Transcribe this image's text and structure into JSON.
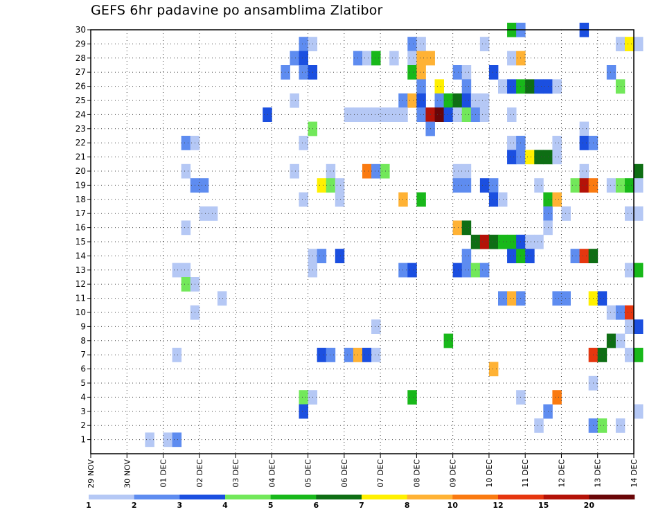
{
  "title": "GEFS 6hr padavine po ansamblima Zlatibor",
  "chart_data": {
    "type": "heatmap",
    "title": "GEFS 6hr padavine po ansamblima Zlatibor",
    "x_ticks": [
      "29 NOV",
      "30 NOV",
      "01 DEC",
      "02 DEC",
      "03 DEC",
      "04 DEC",
      "05 DEC",
      "06 DEC",
      "07 DEC",
      "08 DEC",
      "09 DEC",
      "10 DEC",
      "11 DEC",
      "12 DEC",
      "13 DEC",
      "14 DEC"
    ],
    "y_ticks": [
      1,
      2,
      3,
      4,
      5,
      6,
      7,
      8,
      9,
      10,
      11,
      12,
      13,
      14,
      15,
      16,
      17,
      18,
      19,
      20,
      21,
      22,
      23,
      24,
      25,
      26,
      27,
      28,
      29,
      30
    ],
    "ylim": [
      0,
      30
    ],
    "steps_per_day": 4,
    "grid": true,
    "colorbar": {
      "boundaries": [
        1,
        2,
        3,
        4,
        5,
        6,
        7,
        8,
        10,
        12,
        15,
        20
      ],
      "labels": [
        "1",
        "2",
        "3",
        "4",
        "5",
        "6",
        "7",
        "8",
        "10",
        "12",
        "15",
        "20"
      ],
      "colors": [
        "#b5c8f5",
        "#5e8cf0",
        "#1b4fe0",
        "#72e85a",
        "#18b81a",
        "#0e6e14",
        "#fff000",
        "#ffb234",
        "#fa7a10",
        "#e6360f",
        "#b41208",
        "#6a0608"
      ]
    },
    "cells_encoding": "[member, step, colorbar_class_index] — step is the 6-hour step counted from 29 NOV 00z, class index selects colorbar.colors",
    "cells": [
      [
        30,
        46,
        4
      ],
      [
        30,
        47,
        1
      ],
      [
        30,
        54,
        2
      ],
      [
        29,
        23,
        1
      ],
      [
        29,
        24,
        0
      ],
      [
        29,
        35,
        1
      ],
      [
        29,
        36,
        0
      ],
      [
        29,
        43,
        0
      ],
      [
        29,
        58,
        0
      ],
      [
        29,
        59,
        6
      ],
      [
        29,
        60,
        0
      ],
      [
        28,
        22,
        1
      ],
      [
        28,
        23,
        2
      ],
      [
        28,
        29,
        1
      ],
      [
        28,
        30,
        0
      ],
      [
        28,
        31,
        4
      ],
      [
        28,
        33,
        0
      ],
      [
        28,
        35,
        0
      ],
      [
        28,
        36,
        7
      ],
      [
        28,
        37,
        7
      ],
      [
        28,
        46,
        0
      ],
      [
        28,
        47,
        7
      ],
      [
        27,
        21,
        1
      ],
      [
        27,
        23,
        1
      ],
      [
        27,
        24,
        2
      ],
      [
        27,
        35,
        4
      ],
      [
        27,
        36,
        7
      ],
      [
        27,
        40,
        1
      ],
      [
        27,
        41,
        0
      ],
      [
        27,
        44,
        2
      ],
      [
        27,
        57,
        1
      ],
      [
        26,
        36,
        1
      ],
      [
        26,
        38,
        6
      ],
      [
        26,
        41,
        1
      ],
      [
        26,
        45,
        0
      ],
      [
        26,
        46,
        2
      ],
      [
        26,
        47,
        4
      ],
      [
        26,
        48,
        5
      ],
      [
        26,
        49,
        2
      ],
      [
        26,
        50,
        2
      ],
      [
        26,
        51,
        0
      ],
      [
        26,
        58,
        3
      ],
      [
        25,
        22,
        0
      ],
      [
        25,
        34,
        1
      ],
      [
        25,
        35,
        7
      ],
      [
        25,
        36,
        2
      ],
      [
        25,
        38,
        1
      ],
      [
        25,
        39,
        4
      ],
      [
        25,
        40,
        5
      ],
      [
        25,
        41,
        2
      ],
      [
        25,
        42,
        0
      ],
      [
        25,
        43,
        0
      ],
      [
        24,
        19,
        2
      ],
      [
        24,
        28,
        0
      ],
      [
        24,
        29,
        0
      ],
      [
        24,
        30,
        0
      ],
      [
        24,
        31,
        0
      ],
      [
        24,
        32,
        0
      ],
      [
        24,
        33,
        0
      ],
      [
        24,
        34,
        0
      ],
      [
        24,
        36,
        1
      ],
      [
        24,
        37,
        10
      ],
      [
        24,
        38,
        11
      ],
      [
        24,
        39,
        2
      ],
      [
        24,
        40,
        0
      ],
      [
        24,
        41,
        3
      ],
      [
        24,
        42,
        1
      ],
      [
        24,
        43,
        0
      ],
      [
        24,
        46,
        0
      ],
      [
        23,
        24,
        3
      ],
      [
        23,
        37,
        1
      ],
      [
        23,
        54,
        0
      ],
      [
        22,
        10,
        1
      ],
      [
        22,
        11,
        0
      ],
      [
        22,
        23,
        0
      ],
      [
        22,
        46,
        0
      ],
      [
        22,
        47,
        1
      ],
      [
        22,
        51,
        0
      ],
      [
        22,
        54,
        2
      ],
      [
        22,
        55,
        1
      ],
      [
        21,
        46,
        2
      ],
      [
        21,
        47,
        1
      ],
      [
        21,
        48,
        6
      ],
      [
        21,
        49,
        5
      ],
      [
        21,
        50,
        5
      ],
      [
        21,
        51,
        0
      ],
      [
        20,
        10,
        0
      ],
      [
        20,
        22,
        0
      ],
      [
        20,
        26,
        0
      ],
      [
        20,
        30,
        8
      ],
      [
        20,
        31,
        1
      ],
      [
        20,
        32,
        3
      ],
      [
        20,
        40,
        0
      ],
      [
        20,
        41,
        0
      ],
      [
        20,
        54,
        0
      ],
      [
        20,
        60,
        5
      ],
      [
        19,
        11,
        1
      ],
      [
        19,
        12,
        1
      ],
      [
        19,
        25,
        6
      ],
      [
        19,
        26,
        3
      ],
      [
        19,
        27,
        0
      ],
      [
        19,
        40,
        1
      ],
      [
        19,
        41,
        1
      ],
      [
        19,
        43,
        2
      ],
      [
        19,
        44,
        1
      ],
      [
        19,
        49,
        0
      ],
      [
        19,
        53,
        3
      ],
      [
        19,
        54,
        10
      ],
      [
        19,
        55,
        8
      ],
      [
        19,
        57,
        0
      ],
      [
        19,
        58,
        3
      ],
      [
        19,
        59,
        4
      ],
      [
        19,
        60,
        0
      ],
      [
        18,
        23,
        0
      ],
      [
        18,
        27,
        0
      ],
      [
        18,
        34,
        7
      ],
      [
        18,
        36,
        4
      ],
      [
        18,
        44,
        2
      ],
      [
        18,
        45,
        0
      ],
      [
        18,
        50,
        4
      ],
      [
        18,
        51,
        7
      ],
      [
        17,
        12,
        0
      ],
      [
        17,
        13,
        0
      ],
      [
        17,
        50,
        1
      ],
      [
        17,
        52,
        0
      ],
      [
        17,
        59,
        0
      ],
      [
        17,
        60,
        0
      ],
      [
        16,
        10,
        0
      ],
      [
        16,
        40,
        7
      ],
      [
        16,
        41,
        5
      ],
      [
        16,
        50,
        0
      ],
      [
        15,
        42,
        5
      ],
      [
        15,
        43,
        10
      ],
      [
        15,
        44,
        5
      ],
      [
        15,
        45,
        4
      ],
      [
        15,
        46,
        4
      ],
      [
        15,
        47,
        2
      ],
      [
        15,
        48,
        0
      ],
      [
        15,
        49,
        0
      ],
      [
        14,
        24,
        0
      ],
      [
        14,
        25,
        1
      ],
      [
        14,
        27,
        2
      ],
      [
        14,
        41,
        1
      ],
      [
        14,
        46,
        2
      ],
      [
        14,
        47,
        4
      ],
      [
        14,
        48,
        2
      ],
      [
        14,
        53,
        1
      ],
      [
        14,
        54,
        9
      ],
      [
        14,
        55,
        5
      ],
      [
        13,
        9,
        0
      ],
      [
        13,
        10,
        0
      ],
      [
        13,
        24,
        0
      ],
      [
        13,
        34,
        1
      ],
      [
        13,
        35,
        2
      ],
      [
        13,
        40,
        2
      ],
      [
        13,
        41,
        1
      ],
      [
        13,
        42,
        3
      ],
      [
        13,
        43,
        1
      ],
      [
        13,
        59,
        0
      ],
      [
        13,
        60,
        4
      ],
      [
        12,
        10,
        3
      ],
      [
        12,
        11,
        0
      ],
      [
        11,
        14,
        0
      ],
      [
        11,
        45,
        1
      ],
      [
        11,
        46,
        7
      ],
      [
        11,
        47,
        1
      ],
      [
        11,
        51,
        1
      ],
      [
        11,
        52,
        1
      ],
      [
        11,
        55,
        6
      ],
      [
        11,
        56,
        2
      ],
      [
        10,
        11,
        0
      ],
      [
        10,
        57,
        0
      ],
      [
        10,
        58,
        1
      ],
      [
        10,
        59,
        9
      ],
      [
        9,
        31,
        0
      ],
      [
        9,
        59,
        0
      ],
      [
        9,
        60,
        2
      ],
      [
        8,
        39,
        4
      ],
      [
        8,
        57,
        5
      ],
      [
        8,
        58,
        0
      ],
      [
        7,
        9,
        0
      ],
      [
        7,
        25,
        2
      ],
      [
        7,
        26,
        1
      ],
      [
        7,
        28,
        1
      ],
      [
        7,
        29,
        7
      ],
      [
        7,
        30,
        2
      ],
      [
        7,
        31,
        0
      ],
      [
        7,
        55,
        9
      ],
      [
        7,
        56,
        5
      ],
      [
        7,
        59,
        0
      ],
      [
        7,
        60,
        4
      ],
      [
        6,
        44,
        7
      ],
      [
        5,
        55,
        0
      ],
      [
        4,
        23,
        3
      ],
      [
        4,
        24,
        0
      ],
      [
        4,
        35,
        4
      ],
      [
        4,
        47,
        0
      ],
      [
        4,
        51,
        8
      ],
      [
        3,
        23,
        2
      ],
      [
        3,
        50,
        1
      ],
      [
        3,
        60,
        0
      ],
      [
        2,
        49,
        0
      ],
      [
        2,
        55,
        1
      ],
      [
        2,
        56,
        3
      ],
      [
        2,
        58,
        0
      ],
      [
        1,
        6,
        0
      ],
      [
        1,
        8,
        0
      ],
      [
        1,
        9,
        1
      ]
    ]
  }
}
